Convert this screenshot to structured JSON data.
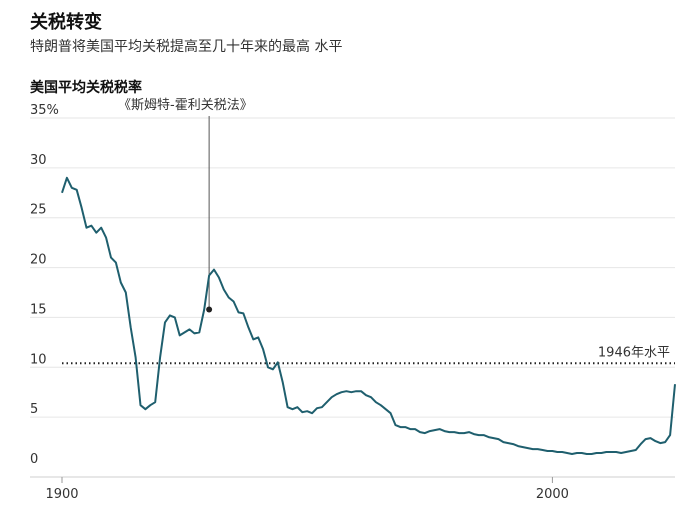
{
  "header": {
    "title": "关税转变",
    "subtitle": "特朗普将美国平均关税提高至几十年来的最高 水平"
  },
  "chart_data": {
    "type": "line",
    "title": "美国平均关税税率",
    "ylim": [
      0,
      35
    ],
    "xlim": [
      1900,
      2025
    ],
    "y_ticks": [
      {
        "value": 0,
        "label": "0"
      },
      {
        "value": 5,
        "label": "5"
      },
      {
        "value": 10,
        "label": "10"
      },
      {
        "value": 15,
        "label": "15"
      },
      {
        "value": 20,
        "label": "20"
      },
      {
        "value": 25,
        "label": "25"
      },
      {
        "value": 30,
        "label": "30"
      },
      {
        "value": 35,
        "label": "35%"
      }
    ],
    "x_ticks": [
      {
        "value": 1900,
        "label": "1900"
      },
      {
        "value": 2000,
        "label": "2000"
      }
    ],
    "grid": true,
    "line_color": "#1f5f6e",
    "series": [
      {
        "x": [
          1900,
          1901,
          1902,
          1903,
          1904,
          1905,
          1906,
          1907,
          1908,
          1909,
          1910,
          1911,
          1912,
          1913,
          1914,
          1915,
          1916,
          1917,
          1918,
          1919,
          1920,
          1921,
          1922,
          1923,
          1924,
          1925,
          1926,
          1927,
          1928,
          1929,
          1930,
          1931,
          1932,
          1933,
          1934,
          1935,
          1936,
          1937,
          1938,
          1939,
          1940,
          1941,
          1942,
          1943,
          1944,
          1945,
          1946,
          1947,
          1948,
          1949,
          1950,
          1951,
          1952,
          1953,
          1954,
          1955,
          1956,
          1957,
          1958,
          1959,
          1960,
          1961,
          1962,
          1963,
          1964,
          1965,
          1966,
          1967,
          1968,
          1969,
          1970,
          1971,
          1972,
          1973,
          1974,
          1975,
          1976,
          1977,
          1978,
          1979,
          1980,
          1981,
          1982,
          1983,
          1984,
          1985,
          1986,
          1987,
          1988,
          1989,
          1990,
          1991,
          1992,
          1993,
          1994,
          1995,
          1996,
          1997,
          1998,
          1999,
          2000,
          2001,
          2002,
          2003,
          2004,
          2005,
          2006,
          2007,
          2008,
          2009,
          2010,
          2011,
          2012,
          2013,
          2014,
          2015,
          2016,
          2017,
          2018,
          2019,
          2020,
          2021,
          2022,
          2023,
          2024,
          2025
        ],
        "values": [
          27.5,
          29,
          28,
          27.8,
          26,
          24,
          24.2,
          23.5,
          24,
          23,
          21,
          20.5,
          18.5,
          17.5,
          14,
          11,
          6.2,
          5.8,
          6.2,
          6.5,
          11,
          14.5,
          15.2,
          15,
          13.2,
          13.5,
          13.8,
          13.4,
          13.5,
          15.8,
          19.2,
          19.8,
          19,
          17.8,
          17,
          16.6,
          15.5,
          15.4,
          14,
          12.8,
          13,
          11.8,
          10,
          9.8,
          10.5,
          8.5,
          6,
          5.8,
          6,
          5.5,
          5.6,
          5.4,
          5.9,
          6,
          6.5,
          7,
          7.3,
          7.5,
          7.6,
          7.5,
          7.6,
          7.6,
          7.2,
          7,
          6.5,
          6.2,
          5.8,
          5.4,
          4.2,
          4,
          4,
          3.8,
          3.8,
          3.5,
          3.4,
          3.6,
          3.7,
          3.8,
          3.6,
          3.5,
          3.5,
          3.4,
          3.4,
          3.5,
          3.3,
          3.2,
          3.2,
          3,
          2.9,
          2.8,
          2.5,
          2.4,
          2.3,
          2.1,
          2,
          1.9,
          1.8,
          1.8,
          1.7,
          1.6,
          1.6,
          1.5,
          1.5,
          1.4,
          1.3,
          1.4,
          1.4,
          1.3,
          1.3,
          1.4,
          1.4,
          1.5,
          1.5,
          1.5,
          1.4,
          1.5,
          1.6,
          1.7,
          2.3,
          2.8,
          2.9,
          2.6,
          2.4,
          2.5,
          3.2,
          8.3
        ]
      }
    ],
    "annotations": [
      {
        "text": "《斯姆特-霍利关税法》",
        "x": 1930,
        "y": 15.8
      },
      {
        "text": "1946年水平",
        "y": 10.4
      }
    ]
  }
}
